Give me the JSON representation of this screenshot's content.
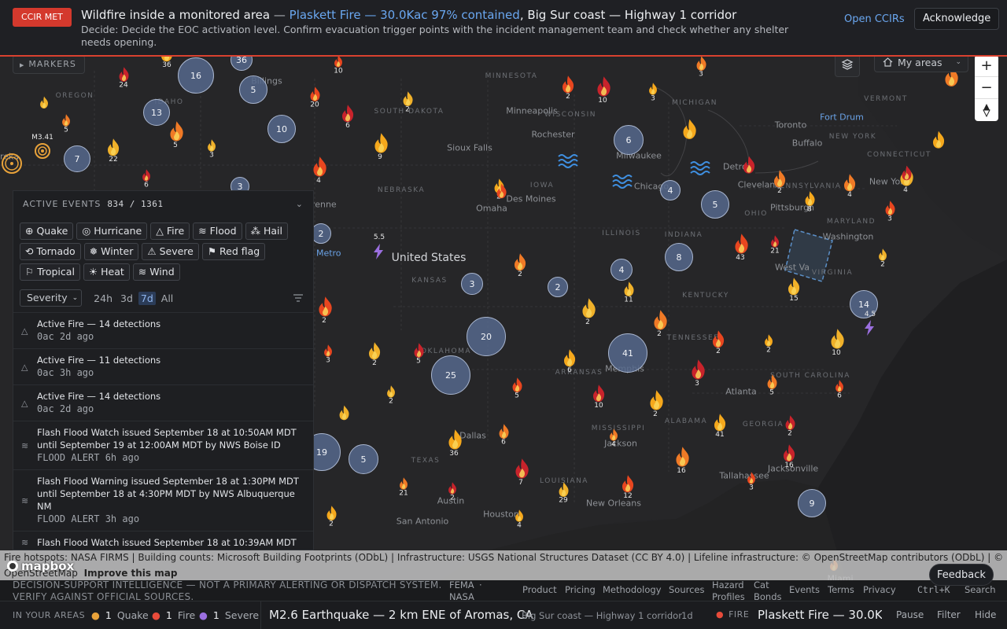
{
  "banner": {
    "badge": "CCIR MET",
    "title": "Wildfire inside a monitored area",
    "sep1": " — ",
    "link": "Plaskett Fire — 30.0Kac 97% contained",
    "rest": ", Big Sur coast — Highway 1 corridor",
    "description": "Decide: Decide the EOC activation level. Confirm evacuation trigger points with the incident management team and check whether any shelter needs opening.",
    "open_ccirs": "Open CCIRs",
    "acknowledge": "Acknowledge"
  },
  "controls": {
    "markers": "MARKERS",
    "my_areas": "My areas",
    "zoom_in": "+",
    "zoom_out": "−",
    "compass": "▲"
  },
  "map_labels": [
    {
      "t": "Billings",
      "cls": ""
    },
    {
      "t": "MINNESOTA",
      "cls": "region"
    },
    {
      "t": "Minneapolis",
      "cls": ""
    },
    {
      "t": "WISCONSIN",
      "cls": "region"
    },
    {
      "t": "MICHIGAN",
      "cls": "region"
    },
    {
      "t": "Toronto",
      "cls": ""
    },
    {
      "t": "Buffalo",
      "cls": ""
    },
    {
      "t": "NEW YORK",
      "cls": "region"
    },
    {
      "t": "VERMONT",
      "cls": "region"
    },
    {
      "t": "Fort Drum",
      "cls": "blue"
    },
    {
      "t": "CONNECTICUT",
      "cls": "region"
    },
    {
      "t": "OREGON",
      "cls": "region"
    },
    {
      "t": "IDAHO",
      "cls": "region"
    },
    {
      "t": "SOUTH DAKOTA",
      "cls": "region"
    },
    {
      "t": "Rochester",
      "cls": ""
    },
    {
      "t": "Sioux Falls",
      "cls": ""
    },
    {
      "t": "Milwaukee",
      "cls": ""
    },
    {
      "t": "Detroit",
      "cls": ""
    },
    {
      "t": "Cleveland",
      "cls": ""
    },
    {
      "t": "PENNSYLVANIA",
      "cls": "region"
    },
    {
      "t": "New York",
      "cls": ""
    },
    {
      "t": "NEBRASKA",
      "cls": "region"
    },
    {
      "t": "IOWA",
      "cls": "region"
    },
    {
      "t": "Des Moines",
      "cls": ""
    },
    {
      "t": "Chicago",
      "cls": ""
    },
    {
      "t": "OHIO",
      "cls": "region"
    },
    {
      "t": "Pittsburgh",
      "cls": ""
    },
    {
      "t": "MARYLAND",
      "cls": "region"
    },
    {
      "t": "Omaha",
      "cls": ""
    },
    {
      "t": "Cheyenne",
      "cls": ""
    },
    {
      "t": "ILLINOIS",
      "cls": "region"
    },
    {
      "t": "INDIANA",
      "cls": "region"
    },
    {
      "t": "Washington",
      "cls": ""
    },
    {
      "t": "United States",
      "cls": "country"
    },
    {
      "t": "KANSAS",
      "cls": "region"
    },
    {
      "t": "West Va",
      "cls": ""
    },
    {
      "t": "VIRGINIA",
      "cls": "region"
    },
    {
      "t": "Denver Metro",
      "cls": "blue"
    },
    {
      "t": "KENTUCKY",
      "cls": "region"
    },
    {
      "t": "TENNESSEE",
      "cls": "region"
    },
    {
      "t": "OKLAHOMA",
      "cls": "region"
    },
    {
      "t": "ARKANSAS",
      "cls": "region"
    },
    {
      "t": "Memphis",
      "cls": ""
    },
    {
      "t": "SOUTH CAROLINA",
      "cls": "region"
    },
    {
      "t": "Atlanta",
      "cls": ""
    },
    {
      "t": "ALABAMA",
      "cls": "region"
    },
    {
      "t": "MISSISSIPPI",
      "cls": "region"
    },
    {
      "t": "Jackson",
      "cls": ""
    },
    {
      "t": "GEORGIA",
      "cls": "region"
    },
    {
      "t": "Dallas",
      "cls": ""
    },
    {
      "t": "TEXAS",
      "cls": "region"
    },
    {
      "t": "LOUISIANA",
      "cls": "region"
    },
    {
      "t": "Tallahassee",
      "cls": ""
    },
    {
      "t": "Jacksonville",
      "cls": ""
    },
    {
      "t": "Austin",
      "cls": ""
    },
    {
      "t": "Houston",
      "cls": ""
    },
    {
      "t": "New Orleans",
      "cls": ""
    },
    {
      "t": "San Antonio",
      "cls": ""
    },
    {
      "t": "Miami",
      "cls": ""
    },
    {
      "t": "Eureka",
      "cls": ""
    }
  ],
  "clusters": [
    16,
    5,
    13,
    10,
    7,
    3,
    36,
    6,
    4,
    5,
    8,
    4,
    2,
    2,
    3,
    20,
    25,
    41,
    14,
    19,
    5,
    9
  ],
  "fire_counts": [
    "10",
    "24",
    "36",
    "5",
    "3",
    "20",
    "6",
    "9",
    "5",
    "2",
    "2",
    "10",
    "3",
    "3",
    "22",
    "4",
    "6",
    "2",
    "2",
    "2",
    "3",
    "5",
    "6",
    "2",
    "2",
    "5",
    "10",
    "2",
    "4",
    "11",
    "2",
    "3",
    "2",
    "5",
    "15",
    "43",
    "21",
    "8",
    "4",
    "10",
    "6",
    "2",
    "41",
    "16",
    "2",
    "3",
    "16",
    "36",
    "21",
    "29",
    "12",
    "7",
    "4",
    "6",
    "2",
    "2",
    "2",
    "2",
    "2",
    "4",
    "3"
  ],
  "quake_labels": [
    "M3.41",
    "5.5",
    "4.5"
  ],
  "panel": {
    "header": "ACTIVE EVENTS",
    "count": "834 / 1361",
    "chips": [
      "Quake",
      "Hurricane",
      "Fire",
      "Flood",
      "Hail",
      "Tornado",
      "Winter",
      "Severe",
      "Red flag",
      "Tropical",
      "Heat",
      "Wind"
    ],
    "severity": "Severity",
    "ranges": [
      "24h",
      "3d",
      "7d",
      "All"
    ],
    "active_range": "7d",
    "events": [
      {
        "title": "Active Fire — 14 detections",
        "meta": "0ac  2d ago",
        "icon": "△"
      },
      {
        "title": "Active Fire — 11 detections",
        "meta": "0ac  3h ago",
        "icon": "△"
      },
      {
        "title": "Active Fire — 14 detections",
        "meta": "0ac  2d ago",
        "icon": "△"
      },
      {
        "title": "Flash Flood Watch issued September 18 at 10:50AM MDT until September 19 at 12:00AM MDT by NWS Boise ID",
        "meta": "FLOOD ALERT  6h ago",
        "icon": "≋"
      },
      {
        "title": "Flash Flood Warning issued September 18 at 1:30PM MDT until September 18 at 4:30PM MDT by NWS Albuquerque NM",
        "meta": "FLOOD ALERT  3h ago",
        "icon": "≋"
      },
      {
        "title": "Flash Flood Watch issued September 18 at 10:39AM MDT",
        "meta": "",
        "icon": "≋"
      }
    ]
  },
  "attribution": {
    "line1": "Fire hotspots: NASA FIRMS | Building counts: Microsoft Building Footprints (ODbL) | Infrastructure: USGS National Structures Dataset (CC BY 4.0) | Lifeline infrastructure: © OpenStreetMap contributors (ODbL) | © Mapbox ©",
    "line2a": "OpenStreetMap",
    "line2b": "Improve this map",
    "logo": "mapbox"
  },
  "feedback": "Feedback",
  "footer": {
    "disclaimer": "DECISION-SUPPORT INTELLIGENCE — NOT A PRIMARY ALERTING OR DISPATCH SYSTEM. VERIFY AGAINST OFFICIAL SOURCES.",
    "fema": "FEMA",
    "nasa": "NASA",
    "dot": "·",
    "links": [
      "Product",
      "Pricing",
      "Methodology",
      "Sources"
    ],
    "hazard1": "Hazard",
    "hazard2": "Profiles",
    "cat1": "Cat",
    "cat2": "Bonds",
    "links2": [
      "Events",
      "Terms",
      "Privacy"
    ],
    "shortcut": "Ctrl+K",
    "search": "Search"
  },
  "ticker": {
    "in_areas": "IN YOUR AREAS",
    "quake_n": "1",
    "quake": "Quake",
    "fire_n": "1",
    "fire": "Fire",
    "severe_n": "1",
    "severe": "Severe",
    "headline": "M2.6 Earthquake — 2 km ENE of Aromas, CA",
    "sub": "Big Sur coast — Highway 1 corridor",
    "age": "1d",
    "fire_tag": "FIRE",
    "fire_headline": "Plaskett Fire — 30.0Kac",
    "pause": "Pause",
    "filter": "Filter",
    "hide": "Hide"
  },
  "colors": {
    "accent": "#d4392d",
    "link": "#6aa7f0",
    "quake": "#e8a23a",
    "fire": "#e84b3a",
    "severe": "#9b6fe0"
  }
}
